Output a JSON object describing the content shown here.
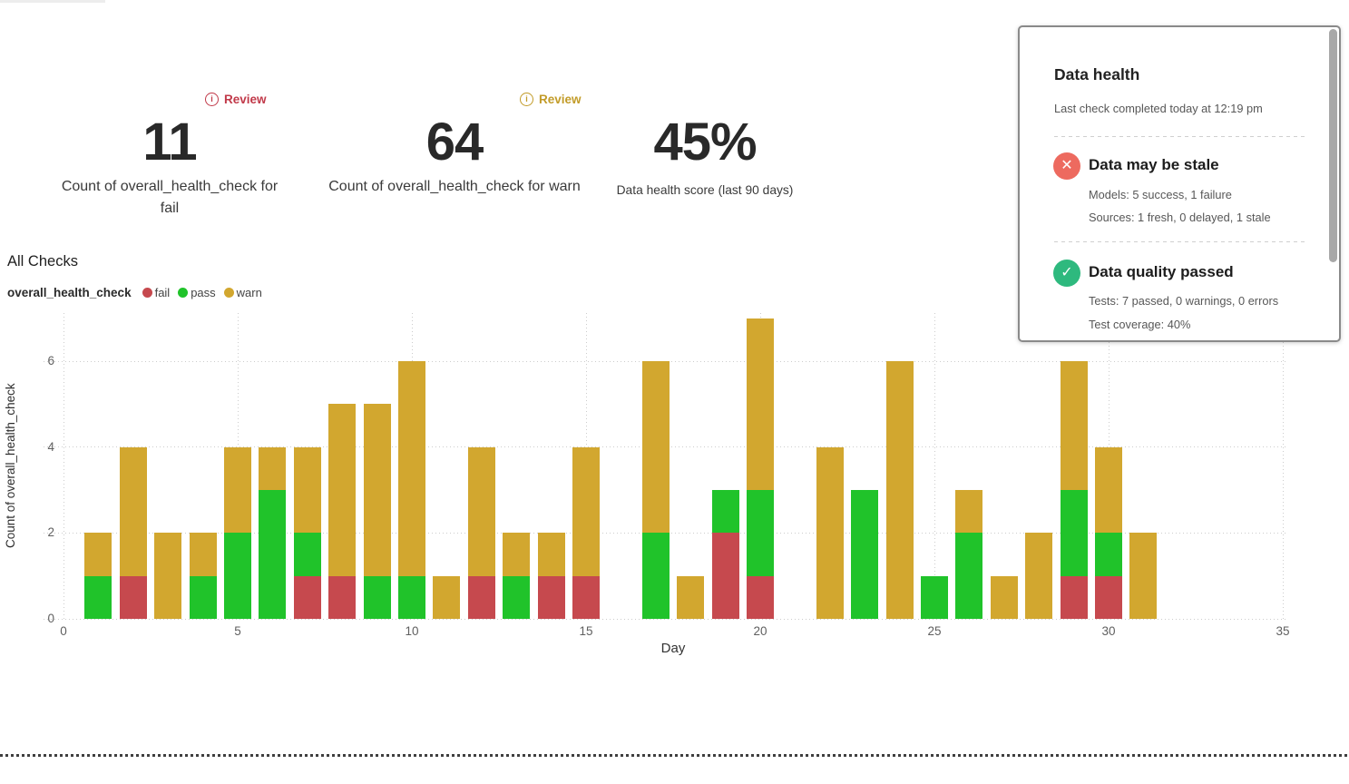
{
  "metrics": [
    {
      "value": "11",
      "label": "Count of overall_health_check for fail",
      "review": {
        "label": "Review",
        "icon": "info-icon",
        "icon_glyph": "i",
        "color": "#c13949"
      }
    },
    {
      "value": "64",
      "label": "Count of overall_health_check for warn",
      "review": {
        "label": "Review",
        "icon": "info-icon",
        "icon_glyph": "i",
        "color": "#c29b28"
      }
    },
    {
      "value": "45%",
      "label": "Data health score (last 90 days)"
    }
  ],
  "chart_data": {
    "type": "bar",
    "stacked": true,
    "title": "All Checks",
    "legend_title": "overall_health_check",
    "xlabel": "Day",
    "ylabel": "Count of overall_health_check",
    "x": [
      1,
      2,
      3,
      4,
      5,
      6,
      7,
      8,
      9,
      10,
      11,
      12,
      13,
      14,
      15,
      16,
      17,
      18,
      19,
      20,
      21,
      22,
      23,
      24,
      25,
      26,
      27,
      28,
      29,
      30,
      31
    ],
    "series": [
      {
        "name": "fail",
        "color": "#c6494e",
        "values": [
          0,
          1,
          0,
          0,
          0,
          0,
          1,
          1,
          0,
          0,
          0,
          1,
          0,
          1,
          1,
          0,
          0,
          0,
          2,
          1,
          0,
          0,
          0,
          0,
          0,
          0,
          0,
          0,
          1,
          1,
          0
        ]
      },
      {
        "name": "pass",
        "color": "#20c32a",
        "values": [
          1,
          0,
          0,
          1,
          2,
          3,
          1,
          0,
          1,
          1,
          0,
          0,
          1,
          0,
          0,
          0,
          2,
          0,
          1,
          2,
          0,
          0,
          3,
          0,
          1,
          2,
          0,
          0,
          2,
          1,
          0
        ]
      },
      {
        "name": "warn",
        "color": "#d2a72f",
        "values": [
          1,
          3,
          2,
          1,
          2,
          1,
          2,
          4,
          4,
          5,
          1,
          3,
          1,
          1,
          3,
          0,
          4,
          1,
          0,
          4,
          0,
          4,
          0,
          6,
          0,
          1,
          1,
          2,
          3,
          2,
          2
        ]
      }
    ],
    "xlim": [
      0,
      35
    ],
    "ylim": [
      0,
      7.12
    ],
    "xticks": [
      0,
      5,
      10,
      15,
      20,
      25,
      30,
      35
    ],
    "yticks": [
      0,
      2,
      4,
      6
    ],
    "grid": "dotted",
    "legend_position": "top-left"
  },
  "panel": {
    "title": "Data health",
    "subtitle": "Last check completed today at 12:19 pm",
    "statuses": [
      {
        "icon": "error-icon",
        "icon_glyph": "✕",
        "color": "#ed6a5f",
        "title": "Data may be stale",
        "details": [
          "Models: 5 success, 1 failure",
          "Sources: 1 fresh, 0 delayed, 1 stale"
        ]
      },
      {
        "icon": "check-icon",
        "icon_glyph": "✓",
        "color": "#2eb97e",
        "title": "Data quality passed",
        "details": [
          "Tests: 7 passed, 0 warnings, 0 errors",
          "Test coverage: 40%"
        ]
      }
    ]
  }
}
